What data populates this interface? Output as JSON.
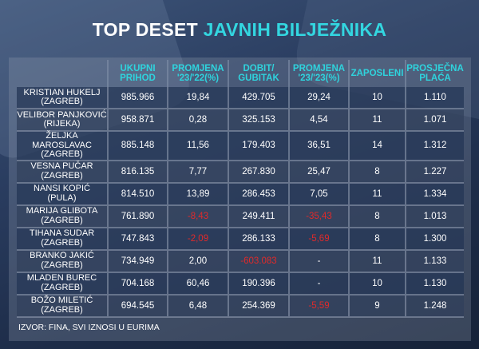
{
  "title": {
    "main": "TOP DESET ",
    "accent": "JAVNIH BILJEŽNIKA"
  },
  "columns": [
    [
      "UKUPNI",
      "PRIHOD"
    ],
    [
      "PROMJENA",
      "'23/'22(%)"
    ],
    [
      "DOBIT/",
      "GUBITAK"
    ],
    [
      "PROMJENA",
      "'23/'23(%)"
    ],
    [
      "ZAPOSLENI",
      ""
    ],
    [
      "PROSJEČNA",
      "PLAĆA"
    ]
  ],
  "rows": [
    {
      "name1": "KRISTIAN HUKELJ",
      "name2": "(ZAGREB)",
      "revenue": "985.966",
      "rev_change": "19,84",
      "profit": "429.705",
      "profit_change": "29,24",
      "employees": "10",
      "salary": "1.110"
    },
    {
      "name1": "VELIBOR PANJKOVIĆ",
      "name2": "(RIJEKA)",
      "revenue": "958.871",
      "rev_change": "0,28",
      "profit": "325.153",
      "profit_change": "4,54",
      "employees": "11",
      "salary": "1.071"
    },
    {
      "name1": "ŽELJKA MAROSLAVAC",
      "name2": "(ZAGREB)",
      "revenue": "885.148",
      "rev_change": "11,56",
      "profit": "179.403",
      "profit_change": "36,51",
      "employees": "14",
      "salary": "1.312"
    },
    {
      "name1": "VESNA PUČAR",
      "name2": "(ZAGREB)",
      "revenue": "816.135",
      "rev_change": "7,77",
      "profit": "267.830",
      "profit_change": "25,47",
      "employees": "8",
      "salary": "1.227"
    },
    {
      "name1": "NANSI KOPIĆ",
      "name2": "(PULA)",
      "revenue": "814.510",
      "rev_change": "13,89",
      "profit": "286.453",
      "profit_change": "7,05",
      "employees": "11",
      "salary": "1.334"
    },
    {
      "name1": "MARIJA GLIBOTA",
      "name2": "(ZAGREB)",
      "revenue": "761.890",
      "rev_change": "-8,43",
      "profit": "249.411",
      "profit_change": "-35,43",
      "employees": "8",
      "salary": "1.013"
    },
    {
      "name1": "TIHANA SUDAR",
      "name2": "(ZAGREB)",
      "revenue": "747.843",
      "rev_change": "-2,09",
      "profit": "286.133",
      "profit_change": "-5,69",
      "employees": "8",
      "salary": "1.300"
    },
    {
      "name1": "BRANKO JAKIĆ",
      "name2": "(ZAGREB)",
      "revenue": "734.949",
      "rev_change": "2,00",
      "profit": "-603.083",
      "profit_change": "-",
      "employees": "11",
      "salary": "1.133"
    },
    {
      "name1": "MLADEN BUREC",
      "name2": "(ZAGREB)",
      "revenue": "704.168",
      "rev_change": "60,46",
      "profit": "190.396",
      "profit_change": "-",
      "employees": "10",
      "salary": "1.130"
    },
    {
      "name1": "BOŽO MILETIĆ",
      "name2": "(ZAGREB)",
      "revenue": "694.545",
      "rev_change": "6,48",
      "profit": "254.369",
      "profit_change": "-5,59",
      "employees": "9",
      "salary": "1.248"
    }
  ],
  "footer": "IZVOR: FINA, SVI IZNOSI U EURIMA",
  "colors": {
    "accent": "#33d6e0",
    "negative": "#e02a2a",
    "text": "#ffffff"
  }
}
